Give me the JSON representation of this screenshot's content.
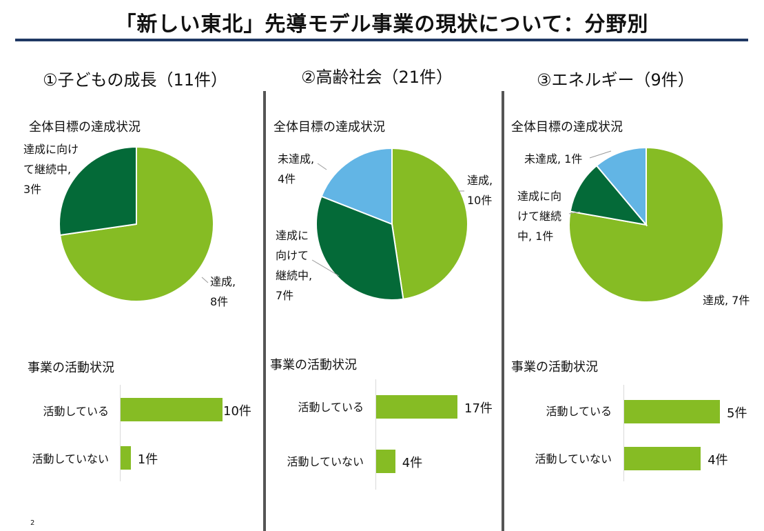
{
  "title": "「新しい東北」先導モデル事業の現状について：分野別",
  "page_number": "2",
  "colors": {
    "achieved": "#86bc24",
    "continuing": "#046a38",
    "not_achieved": "#62b5e5",
    "bar": "#86bc24",
    "title_rule": "#1f3864"
  },
  "chart_data": [
    {
      "type": "pie",
      "section": "①子どもの成長（11件）",
      "title": "全体目標の達成状況",
      "slices": [
        {
          "name": "達成",
          "value": 8,
          "label_lines": [
            "達成,",
            "8件"
          ]
        },
        {
          "name": "達成に向けて継続中",
          "value": 3,
          "label_lines": [
            "達成に向け",
            "て継続中,",
            "3件"
          ]
        }
      ]
    },
    {
      "type": "pie",
      "section": "②高齢社会（21件）",
      "title": "全体目標の達成状況",
      "slices": [
        {
          "name": "達成",
          "value": 10,
          "label_lines": [
            "達成,",
            "10件"
          ]
        },
        {
          "name": "達成に向けて継続中",
          "value": 7,
          "label_lines": [
            "達成に",
            "向けて",
            "継続中,",
            "7件"
          ]
        },
        {
          "name": "未達成",
          "value": 4,
          "label_lines": [
            "未達成,",
            "4件"
          ]
        }
      ]
    },
    {
      "type": "pie",
      "section": "③エネルギー（9件）",
      "title": "全体目標の達成状況",
      "slices": [
        {
          "name": "達成",
          "value": 7,
          "label_lines": [
            "達成, 7件"
          ]
        },
        {
          "name": "達成に向けて継続中",
          "value": 1,
          "label_lines": [
            "達成に向",
            "けて継続",
            "中, 1件"
          ]
        },
        {
          "name": "未達成",
          "value": 1,
          "label_lines": [
            "未達成, 1件"
          ]
        }
      ]
    },
    {
      "type": "bar",
      "orientation": "horizontal",
      "title": "事業の活動状況",
      "categories": [
        "活動している",
        "活動していない"
      ],
      "values": [
        10,
        1
      ],
      "value_labels": [
        "10件",
        "1件"
      ],
      "xlim": [
        0,
        10
      ]
    },
    {
      "type": "bar",
      "orientation": "horizontal",
      "title": "事業の活動状況",
      "categories": [
        "活動している",
        "活動していない"
      ],
      "values": [
        17,
        4
      ],
      "value_labels": [
        "17件",
        "4件"
      ],
      "xlim": [
        0,
        17
      ]
    },
    {
      "type": "bar",
      "orientation": "horizontal",
      "title": "事業の活動状況",
      "categories": [
        "活動している",
        "活動していない"
      ],
      "values": [
        5,
        4
      ],
      "value_labels": [
        "5件",
        "4件"
      ],
      "xlim": [
        0,
        5
      ]
    }
  ]
}
